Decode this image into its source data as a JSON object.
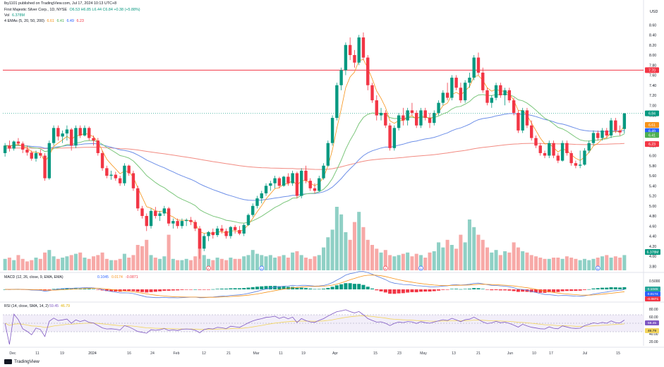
{
  "publisher_line": "lby1101 published on TradingView.com, Jul 17, 2024 10:13 UTC+8",
  "symbol_line": {
    "name": "First Majestic Silver Corp., 1D, NYSE",
    "ohlc": "O6.53 H6.85 L6.44 C6.84 +0.38 (+5.88%)",
    "ohlc_color": "#089981"
  },
  "vol_line": {
    "label": "Vol",
    "value": "6.378M"
  },
  "ema_line": {
    "label": "4 EMAs (5, 20, 50, 200)",
    "values": [
      "6.61",
      "6.41",
      "6.49",
      "6.23"
    ]
  },
  "currency": "USD",
  "branding": "TradingView",
  "colors": {
    "up": "#089981",
    "down": "#f23645",
    "up_vol": "#8fd0c5",
    "down_vol": "#f7a9a7",
    "ema5": "#f7931a",
    "ema20": "#7bc67b",
    "ema50": "#6d8fe8",
    "ema200": "#f28b82",
    "resistance": "#f23645",
    "macd": "#5b7fe0",
    "signal": "#f7931a",
    "rsi": "#7e57c2",
    "rsi_ma": "#f2d45c",
    "rsi_band_fill": "#ede7f6"
  },
  "chart_data": [
    {
      "type": "candlestick",
      "title": "First Majestic Silver Corp., 1D, NYSE",
      "ylabel": "USD",
      "ylim": [
        3.8,
        8.6
      ],
      "price_ticks": [
        "8.60",
        "8.40",
        "8.20",
        "8.00",
        "7.80",
        "7.60",
        "7.40",
        "7.20",
        "7.00",
        "6.80",
        "6.60",
        "6.40",
        "6.20",
        "6.00",
        "5.80",
        "5.60",
        "5.40",
        "5.20",
        "5.00",
        "4.80",
        "4.60",
        "4.40",
        "4.20",
        "4.00",
        "3.80"
      ],
      "x_labels": [
        "Dec",
        "11",
        "19",
        "2024",
        "16",
        "24",
        "Feb",
        "12",
        "21",
        "Mar",
        "11",
        "19",
        "Apr",
        "15",
        "23",
        "May",
        "13",
        "21",
        "Jun",
        "10",
        "17",
        "Jul",
        "15"
      ],
      "resistance_line": {
        "value": 7.7,
        "label": "7.70"
      },
      "last_price_line": 6.84,
      "candles": [
        [
          6.05,
          6.25,
          5.98,
          6.2
        ],
        [
          6.2,
          6.3,
          6.08,
          6.14
        ],
        [
          6.14,
          6.3,
          6.1,
          6.28
        ],
        [
          6.28,
          6.35,
          6.2,
          6.24
        ],
        [
          6.24,
          6.28,
          6.05,
          6.12
        ],
        [
          6.12,
          6.2,
          6.0,
          6.06
        ],
        [
          6.06,
          6.1,
          5.9,
          5.94
        ],
        [
          5.94,
          6.1,
          5.88,
          6.05
        ],
        [
          6.05,
          6.12,
          5.95,
          6.0
        ],
        [
          6.0,
          6.05,
          5.5,
          5.55
        ],
        [
          5.55,
          6.3,
          5.52,
          6.25
        ],
        [
          6.25,
          6.6,
          6.2,
          6.55
        ],
        [
          6.55,
          6.6,
          6.3,
          6.38
        ],
        [
          6.38,
          6.5,
          6.25,
          6.44
        ],
        [
          6.44,
          6.6,
          6.3,
          6.52
        ],
        [
          6.52,
          6.55,
          6.1,
          6.2
        ],
        [
          6.2,
          6.6,
          6.15,
          6.55
        ],
        [
          6.55,
          6.6,
          6.35,
          6.4
        ],
        [
          6.4,
          6.6,
          6.38,
          6.55
        ],
        [
          6.55,
          6.58,
          6.3,
          6.35
        ],
        [
          6.35,
          6.4,
          6.2,
          6.3
        ],
        [
          6.3,
          6.35,
          6.0,
          6.05
        ],
        [
          6.05,
          6.1,
          5.7,
          5.75
        ],
        [
          5.75,
          5.8,
          5.55,
          5.6
        ],
        [
          5.6,
          5.7,
          5.52,
          5.62
        ],
        [
          5.62,
          5.68,
          5.5,
          5.55
        ],
        [
          5.55,
          5.6,
          5.4,
          5.45
        ],
        [
          5.45,
          5.85,
          5.4,
          5.8
        ],
        [
          5.8,
          5.82,
          5.6,
          5.65
        ],
        [
          5.65,
          5.7,
          5.3,
          5.35
        ],
        [
          5.35,
          5.4,
          4.9,
          4.95
        ],
        [
          4.95,
          5.0,
          4.75,
          4.8
        ],
        [
          4.8,
          4.85,
          4.5,
          4.6
        ],
        [
          4.6,
          4.95,
          4.55,
          4.9
        ],
        [
          4.9,
          4.98,
          4.75,
          4.8
        ],
        [
          4.8,
          4.9,
          4.7,
          4.85
        ],
        [
          4.85,
          5.0,
          4.8,
          4.95
        ],
        [
          4.95,
          4.98,
          4.6,
          4.65
        ],
        [
          4.65,
          4.75,
          4.55,
          4.7
        ],
        [
          4.7,
          4.75,
          4.55,
          4.6
        ],
        [
          4.6,
          4.75,
          4.55,
          4.7
        ],
        [
          4.7,
          4.75,
          4.6,
          4.72
        ],
        [
          4.72,
          4.78,
          4.62,
          4.68
        ],
        [
          4.68,
          4.72,
          4.5,
          4.55
        ],
        [
          4.55,
          4.6,
          3.95,
          4.15
        ],
        [
          4.15,
          4.45,
          4.1,
          4.4
        ],
        [
          4.4,
          4.5,
          4.3,
          4.48
        ],
        [
          4.48,
          4.55,
          4.35,
          4.42
        ],
        [
          4.42,
          4.6,
          4.38,
          4.55
        ],
        [
          4.55,
          4.62,
          4.45,
          4.5
        ],
        [
          4.5,
          4.55,
          4.35,
          4.4
        ],
        [
          4.4,
          4.6,
          4.35,
          4.58
        ],
        [
          4.58,
          4.62,
          4.45,
          4.52
        ],
        [
          4.52,
          4.6,
          4.42,
          4.45
        ],
        [
          4.45,
          4.65,
          4.4,
          4.62
        ],
        [
          4.62,
          4.85,
          4.6,
          4.82
        ],
        [
          4.82,
          5.05,
          4.78,
          5.0
        ],
        [
          5.0,
          5.2,
          4.95,
          5.15
        ],
        [
          5.15,
          5.3,
          5.05,
          5.25
        ],
        [
          5.25,
          5.45,
          5.2,
          5.4
        ],
        [
          5.4,
          5.5,
          5.3,
          5.45
        ],
        [
          5.45,
          5.6,
          5.35,
          5.55
        ],
        [
          5.55,
          5.58,
          5.35,
          5.4
        ],
        [
          5.4,
          5.6,
          5.38,
          5.58
        ],
        [
          5.58,
          5.65,
          5.4,
          5.45
        ],
        [
          5.45,
          5.7,
          5.4,
          5.65
        ],
        [
          5.65,
          5.68,
          5.15,
          5.2
        ],
        [
          5.2,
          5.75,
          5.15,
          5.7
        ],
        [
          5.7,
          5.8,
          5.45,
          5.5
        ],
        [
          5.5,
          5.55,
          5.3,
          5.35
        ],
        [
          5.35,
          5.45,
          5.25,
          5.3
        ],
        [
          5.3,
          5.6,
          5.28,
          5.55
        ],
        [
          5.55,
          5.85,
          5.52,
          5.8
        ],
        [
          5.8,
          6.3,
          5.78,
          6.25
        ],
        [
          6.25,
          6.8,
          6.2,
          6.75
        ],
        [
          6.75,
          7.45,
          6.7,
          7.4
        ],
        [
          7.4,
          7.75,
          7.3,
          7.7
        ],
        [
          7.7,
          8.25,
          7.6,
          8.2
        ],
        [
          8.2,
          8.35,
          7.9,
          8.0
        ],
        [
          8.0,
          8.1,
          7.75,
          7.85
        ],
        [
          7.85,
          8.4,
          7.8,
          8.35
        ],
        [
          8.35,
          8.45,
          7.9,
          7.95
        ],
        [
          7.95,
          8.0,
          7.3,
          7.4
        ],
        [
          7.4,
          7.45,
          7.05,
          7.1
        ],
        [
          7.1,
          7.2,
          6.7,
          6.8
        ],
        [
          6.8,
          6.95,
          6.7,
          6.85
        ],
        [
          6.85,
          6.9,
          6.55,
          6.6
        ],
        [
          6.6,
          6.65,
          6.1,
          6.15
        ],
        [
          6.15,
          6.6,
          6.1,
          6.55
        ],
        [
          6.55,
          6.85,
          6.5,
          6.8
        ],
        [
          6.8,
          6.95,
          6.6,
          6.7
        ],
        [
          6.7,
          6.95,
          6.6,
          6.9
        ],
        [
          6.9,
          7.05,
          6.8,
          6.85
        ],
        [
          6.85,
          6.9,
          6.55,
          6.6
        ],
        [
          6.6,
          6.95,
          6.55,
          6.9
        ],
        [
          6.9,
          6.95,
          6.7,
          6.75
        ],
        [
          6.75,
          6.85,
          6.55,
          6.65
        ],
        [
          6.65,
          6.9,
          6.6,
          6.85
        ],
        [
          6.85,
          7.1,
          6.8,
          7.05
        ],
        [
          7.05,
          7.3,
          7.0,
          7.25
        ],
        [
          7.25,
          7.45,
          7.1,
          7.15
        ],
        [
          7.15,
          7.6,
          7.1,
          7.55
        ],
        [
          7.55,
          7.6,
          7.3,
          7.35
        ],
        [
          7.35,
          7.45,
          7.05,
          7.1
        ],
        [
          7.1,
          7.5,
          7.05,
          7.45
        ],
        [
          7.45,
          7.65,
          7.35,
          7.55
        ],
        [
          7.55,
          8.0,
          7.5,
          7.95
        ],
        [
          7.95,
          8.05,
          7.6,
          7.65
        ],
        [
          7.65,
          7.75,
          7.25,
          7.3
        ],
        [
          7.3,
          7.35,
          7.0,
          7.05
        ],
        [
          7.05,
          7.2,
          6.95,
          7.15
        ],
        [
          7.15,
          7.45,
          7.1,
          7.4
        ],
        [
          7.4,
          7.45,
          7.15,
          7.2
        ],
        [
          7.2,
          7.35,
          7.0,
          7.3
        ],
        [
          7.3,
          7.35,
          7.05,
          7.1
        ],
        [
          7.1,
          7.15,
          6.8,
          6.85
        ],
        [
          6.85,
          6.9,
          6.45,
          6.5
        ],
        [
          6.5,
          6.95,
          6.45,
          6.9
        ],
        [
          6.9,
          6.95,
          6.55,
          6.6
        ],
        [
          6.6,
          6.7,
          6.3,
          6.35
        ],
        [
          6.35,
          6.4,
          6.15,
          6.2
        ],
        [
          6.2,
          6.25,
          6.0,
          6.05
        ],
        [
          6.05,
          6.1,
          5.95,
          6.0
        ],
        [
          6.0,
          6.3,
          5.95,
          6.25
        ],
        [
          6.25,
          6.3,
          5.95,
          6.0
        ],
        [
          6.0,
          6.05,
          5.85,
          5.9
        ],
        [
          5.9,
          6.3,
          5.88,
          6.25
        ],
        [
          6.25,
          6.3,
          6.0,
          6.05
        ],
        [
          6.05,
          6.1,
          5.8,
          5.85
        ],
        [
          5.85,
          5.9,
          5.75,
          5.8
        ],
        [
          5.8,
          6.1,
          5.75,
          5.82
        ],
        [
          5.82,
          6.15,
          5.8,
          6.1
        ],
        [
          6.1,
          6.3,
          6.05,
          6.25
        ],
        [
          6.25,
          6.5,
          6.2,
          6.45
        ],
        [
          6.45,
          6.5,
          6.3,
          6.35
        ],
        [
          6.35,
          6.55,
          6.3,
          6.5
        ],
        [
          6.5,
          6.55,
          6.35,
          6.4
        ],
        [
          6.4,
          6.75,
          6.35,
          6.7
        ],
        [
          6.7,
          6.75,
          6.45,
          6.5
        ],
        [
          6.5,
          6.6,
          6.4,
          6.46
        ],
        [
          6.53,
          6.85,
          6.44,
          6.84
        ]
      ],
      "volume": {
        "label": "Vol",
        "last_label": "6.378M",
        "values": [
          9,
          10,
          8,
          12,
          9,
          7,
          8,
          10,
          9,
          14,
          16,
          11,
          9,
          10,
          11,
          12,
          13,
          14,
          10,
          9,
          11,
          12,
          14,
          9,
          8,
          8,
          9,
          13,
          10,
          12,
          20,
          19,
          24,
          12,
          10,
          9,
          11,
          28,
          9,
          8,
          8,
          9,
          8,
          11,
          32,
          12,
          9,
          8,
          10,
          9,
          8,
          10,
          9,
          9,
          11,
          12,
          16,
          13,
          12,
          11,
          12,
          10,
          11,
          12,
          10,
          14,
          15,
          12,
          10,
          9,
          11,
          12,
          18,
          26,
          32,
          50,
          44,
          30,
          24,
          38,
          46,
          34,
          24,
          20,
          17,
          14,
          16,
          12,
          11,
          12,
          13,
          14,
          11,
          13,
          12,
          10,
          14,
          15,
          22,
          18,
          24,
          20,
          17,
          28,
          22,
          40,
          34,
          28,
          24,
          18,
          14,
          16,
          12,
          15,
          14,
          22,
          18,
          15,
          14,
          12,
          11,
          10,
          9,
          9,
          10,
          10,
          9,
          11,
          10,
          9,
          8,
          9,
          8,
          9,
          10,
          11,
          12,
          10,
          11,
          10,
          12,
          11,
          10,
          14
        ]
      },
      "ema": [
        {
          "name": "EMA 5",
          "period": 5,
          "value": "6.61"
        },
        {
          "name": "EMA 20",
          "period": 20,
          "value": "6.41"
        },
        {
          "name": "EMA 50",
          "period": 50,
          "value": "6.49"
        },
        {
          "name": "EMA 200",
          "period": 200,
          "value": "6.23"
        }
      ],
      "events": [
        "E",
        "D",
        "E",
        "D",
        "D"
      ]
    },
    {
      "type": "line",
      "title": "MACD (12, 26, close, 9, EMA, EMA)",
      "series_values": [
        "0.1045",
        "0.0174",
        "-0.0871"
      ],
      "axis_ticks": [
        "0.5000",
        "0.0000"
      ]
    },
    {
      "type": "line",
      "title": "RSI (14, close, SMA, 14, 2)",
      "series_values": [
        "59.45",
        "46.79"
      ],
      "axis_ticks": [
        "80.00",
        "60.00",
        "40.00",
        "20.00"
      ],
      "bands": [
        70,
        30
      ]
    }
  ]
}
